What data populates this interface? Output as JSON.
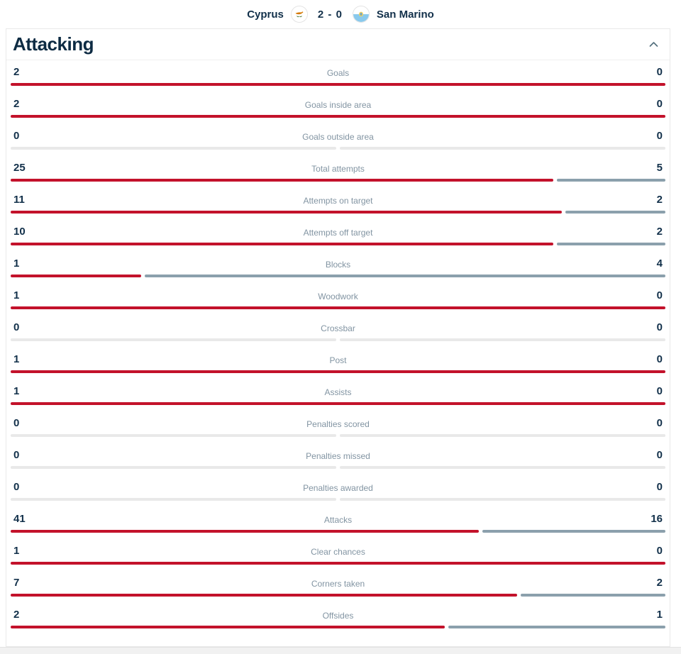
{
  "header": {
    "home_team": "Cyprus",
    "away_team": "San Marino",
    "score": "2 - 0",
    "home_flag": "cyprus-flag",
    "away_flag": "san-marino-flag"
  },
  "section": {
    "title": "Attacking",
    "collapse_icon": "chevron-up"
  },
  "colors": {
    "home_bar": "#c3122b",
    "away_bar": "#8ba0ac",
    "zero_bar": "#e9e9e9",
    "navy_text": "#12304a",
    "label_gray": "#8294a2"
  },
  "stats": [
    {
      "label": "Goals",
      "home": 2,
      "away": 0
    },
    {
      "label": "Goals inside area",
      "home": 2,
      "away": 0
    },
    {
      "label": "Goals outside area",
      "home": 0,
      "away": 0
    },
    {
      "label": "Total attempts",
      "home": 25,
      "away": 5
    },
    {
      "label": "Attempts on target",
      "home": 11,
      "away": 2
    },
    {
      "label": "Attempts off target",
      "home": 10,
      "away": 2
    },
    {
      "label": "Blocks",
      "home": 1,
      "away": 4
    },
    {
      "label": "Woodwork",
      "home": 1,
      "away": 0
    },
    {
      "label": "Crossbar",
      "home": 0,
      "away": 0
    },
    {
      "label": "Post",
      "home": 1,
      "away": 0
    },
    {
      "label": "Assists",
      "home": 1,
      "away": 0
    },
    {
      "label": "Penalties scored",
      "home": 0,
      "away": 0
    },
    {
      "label": "Penalties missed",
      "home": 0,
      "away": 0
    },
    {
      "label": "Penalties awarded",
      "home": 0,
      "away": 0
    },
    {
      "label": "Attacks",
      "home": 41,
      "away": 16
    },
    {
      "label": "Clear chances",
      "home": 1,
      "away": 0
    },
    {
      "label": "Corners taken",
      "home": 7,
      "away": 2
    },
    {
      "label": "Offsides",
      "home": 2,
      "away": 1
    }
  ]
}
